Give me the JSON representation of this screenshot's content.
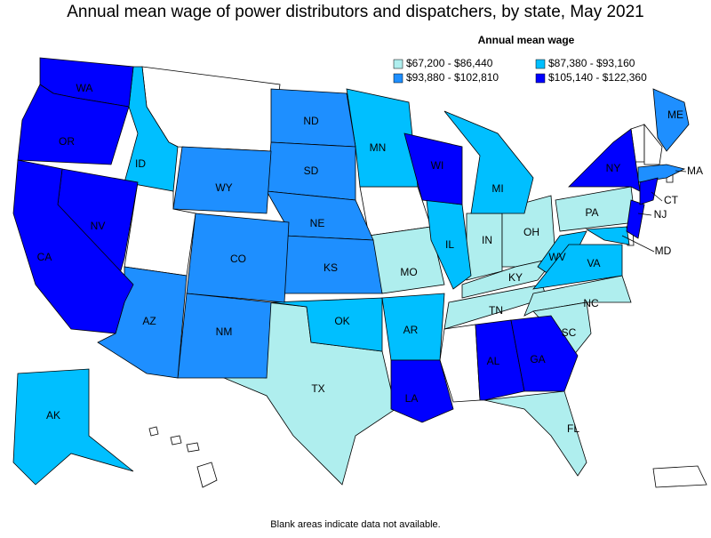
{
  "title": "Annual mean wage of power distributors and dispatchers, by state, May 2021",
  "legend": {
    "title": "Annual mean wage",
    "items": [
      {
        "label": "$67,200 - $86,440",
        "color": "#afeeee",
        "states": [
          "TX",
          "MO",
          "IN",
          "OH",
          "KY",
          "TN",
          "NC",
          "SC",
          "FL",
          "PA"
        ]
      },
      {
        "label": "$87,380 - $93,160",
        "color": "#00bfff",
        "states": [
          "ID",
          "MN",
          "MI",
          "IL",
          "WV",
          "VA",
          "OK",
          "AR",
          "AK",
          "MD"
        ]
      },
      {
        "label": "$93,880 - $102,810",
        "color": "#1e8fff",
        "states": [
          "ND",
          "SD",
          "NE",
          "KS",
          "WY",
          "CO",
          "NM",
          "AZ",
          "ME",
          "MA"
        ]
      },
      {
        "label": "$105,140 - $122,360",
        "color": "#0000ff",
        "states": [
          "WA",
          "OR",
          "NV",
          "CA",
          "WI",
          "NY",
          "NJ",
          "CT",
          "LA",
          "AL",
          "GA"
        ]
      }
    ]
  },
  "footnote": "Blank areas indicate data not available."
}
